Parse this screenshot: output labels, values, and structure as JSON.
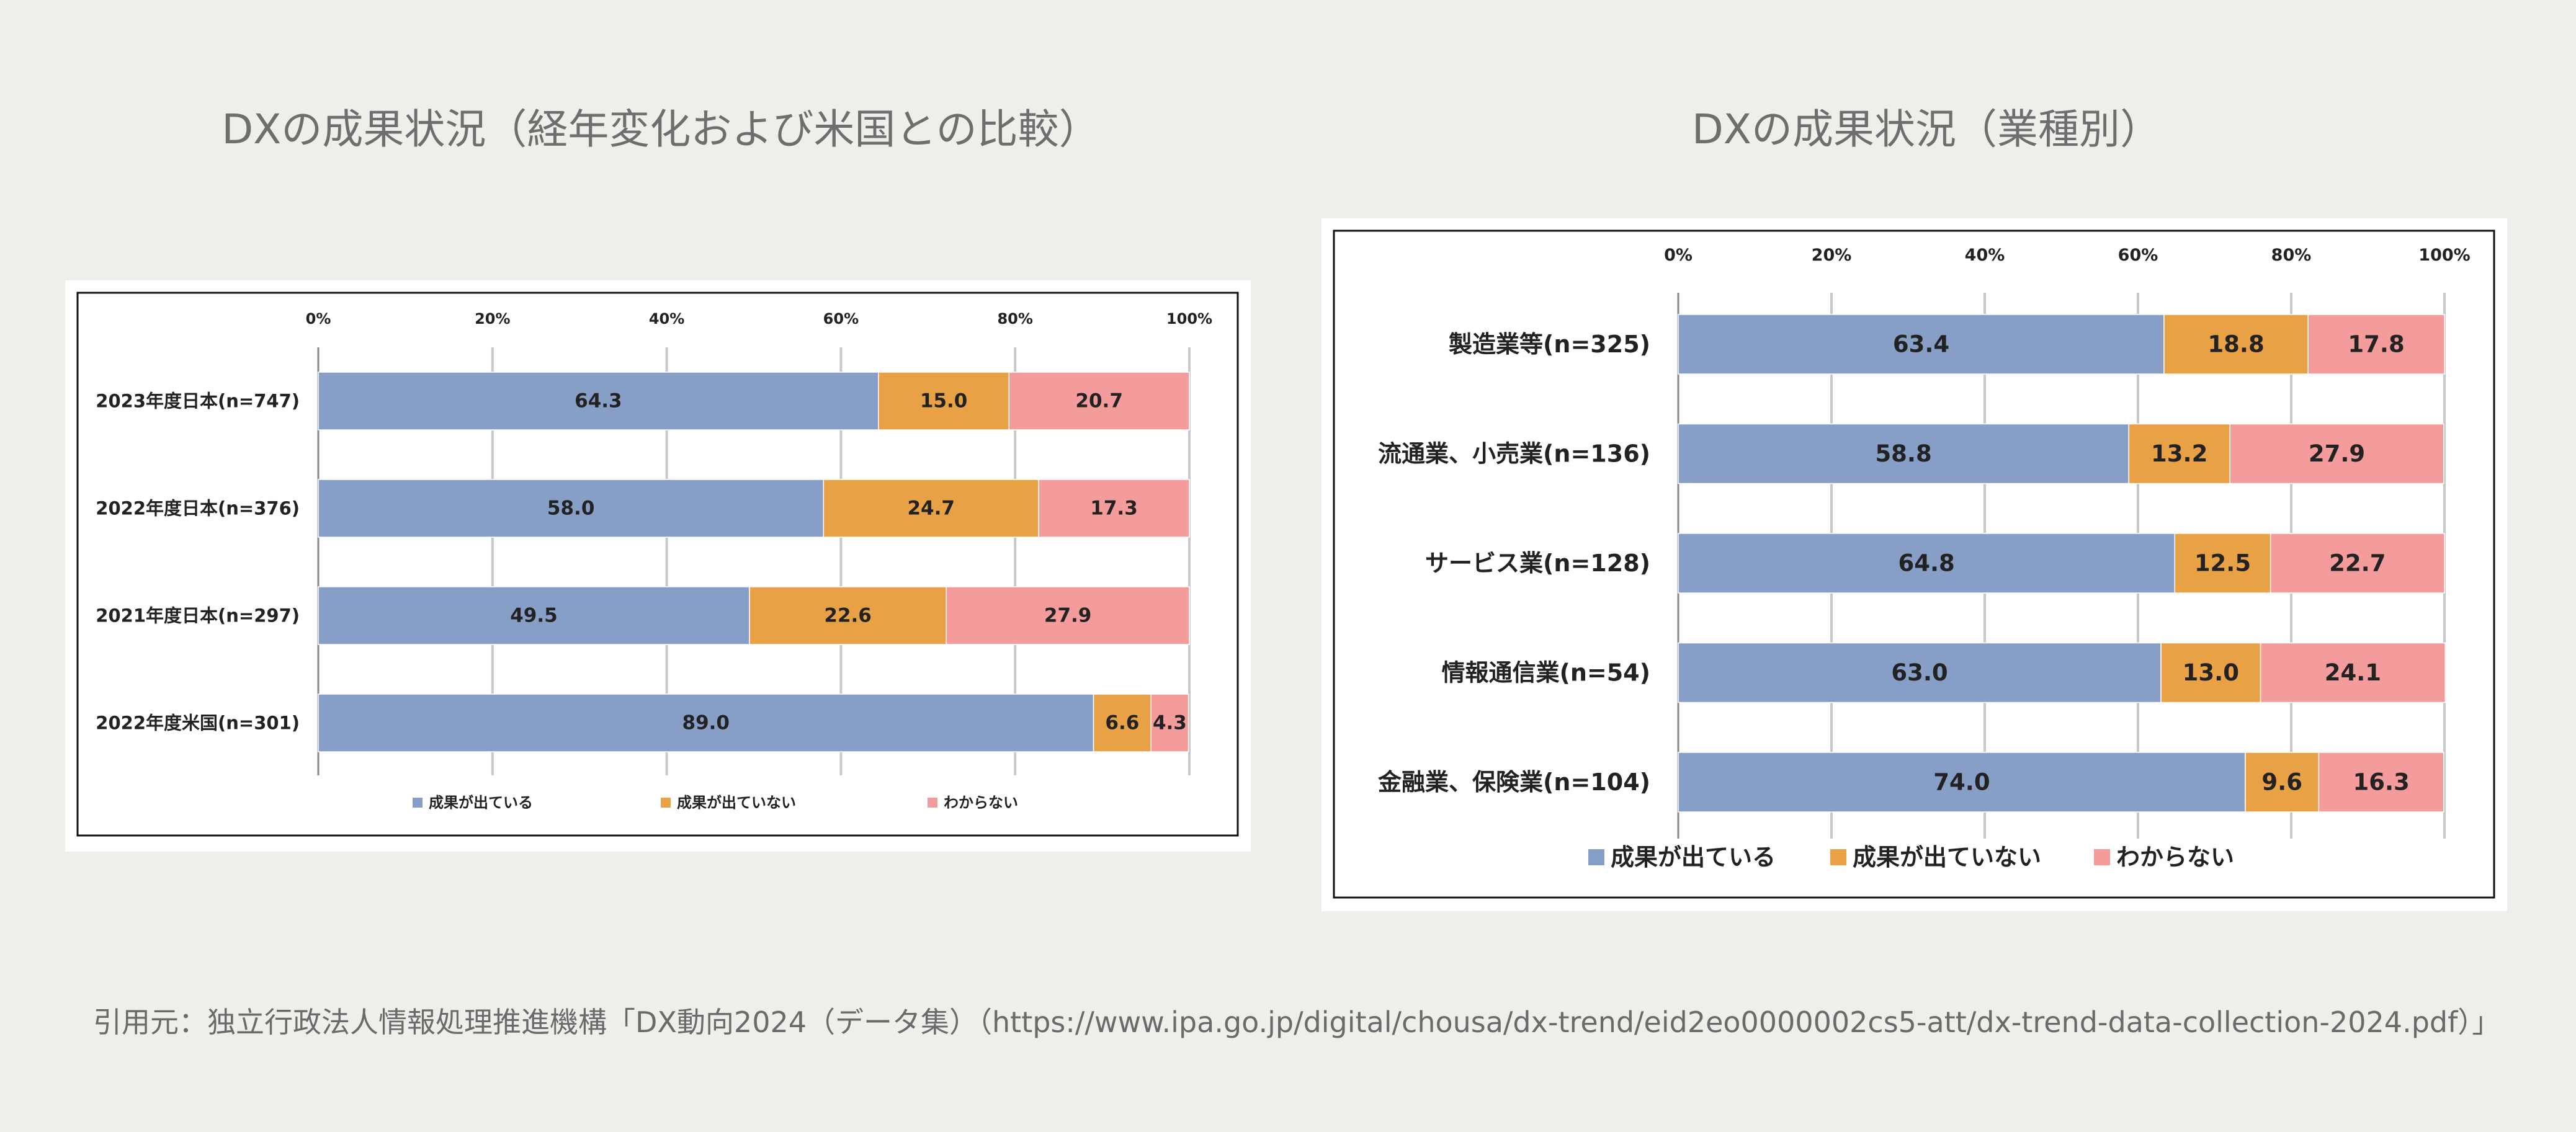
{
  "page": {
    "citation": "引用元：独立行政法人情報処理推進機構「DX動向2024（データ集）（https://www.ipa.go.jp/digital/chousa/dx-trend/eid2eo0000002cs5-att/dx-trend-data-collection-2024.pdf）」"
  },
  "chart_data": [
    {
      "type": "bar",
      "orientation": "horizontal",
      "stacked": true,
      "title": "DXの成果状況（経年変化および米国との比較）",
      "categories": [
        "2023年度日本(n=747)",
        "2022年度日本(n=376)",
        "2021年度日本(n=297)",
        "2022年度米国(n=301)"
      ],
      "series": [
        {
          "name": "成果が出ている",
          "values": [
            64.3,
            58.0,
            49.5,
            89.0
          ],
          "labels": [
            "64.3",
            "58.0",
            "49.5",
            "89.0"
          ],
          "color": "#879fc7"
        },
        {
          "name": "成果が出ていない",
          "values": [
            15.0,
            24.7,
            22.6,
            6.6
          ],
          "labels": [
            "15.0",
            "24.7",
            "22.6",
            "6.6"
          ],
          "color": "#e8a145"
        },
        {
          "name": "わからない",
          "values": [
            20.7,
            17.3,
            27.9,
            4.3
          ],
          "labels": [
            "20.7",
            "17.3",
            "27.9",
            "4.3"
          ],
          "color": "#f49b9c"
        }
      ],
      "xlim": [
        0,
        100
      ],
      "xticks": [
        "0%",
        "20%",
        "40%",
        "60%",
        "80%",
        "100%"
      ],
      "axis_position": "top",
      "grid": true,
      "legend": "bottom"
    },
    {
      "type": "bar",
      "orientation": "horizontal",
      "stacked": true,
      "title": "DXの成果状況（業種別）",
      "categories": [
        "製造業等(n=325)",
        "流通業、小売業(n=136)",
        "サービス業(n=128)",
        "情報通信業(n=54)",
        "金融業、保険業(n=104)"
      ],
      "series": [
        {
          "name": "成果が出ている",
          "values": [
            63.4,
            58.8,
            64.8,
            63.0,
            74.0
          ],
          "labels": [
            "63.4",
            "58.8",
            "64.8",
            "63.0",
            "74.0"
          ],
          "color": "#879fc7"
        },
        {
          "name": "成果が出ていない",
          "values": [
            18.8,
            13.2,
            12.5,
            13.0,
            9.6
          ],
          "labels": [
            "18.8",
            "13.2",
            "12.5",
            "13.0",
            "9.6"
          ],
          "color": "#e8a145"
        },
        {
          "name": "わからない",
          "values": [
            17.8,
            27.9,
            22.7,
            24.1,
            16.3
          ],
          "labels": [
            "17.8",
            "27.9",
            "22.7",
            "24.1",
            "16.3"
          ],
          "color": "#f49b9c"
        }
      ],
      "xlim": [
        0,
        100
      ],
      "xticks": [
        "0%",
        "20%",
        "40%",
        "60%",
        "80%",
        "100%"
      ],
      "axis_position": "top",
      "grid": true,
      "legend": "bottom"
    }
  ]
}
